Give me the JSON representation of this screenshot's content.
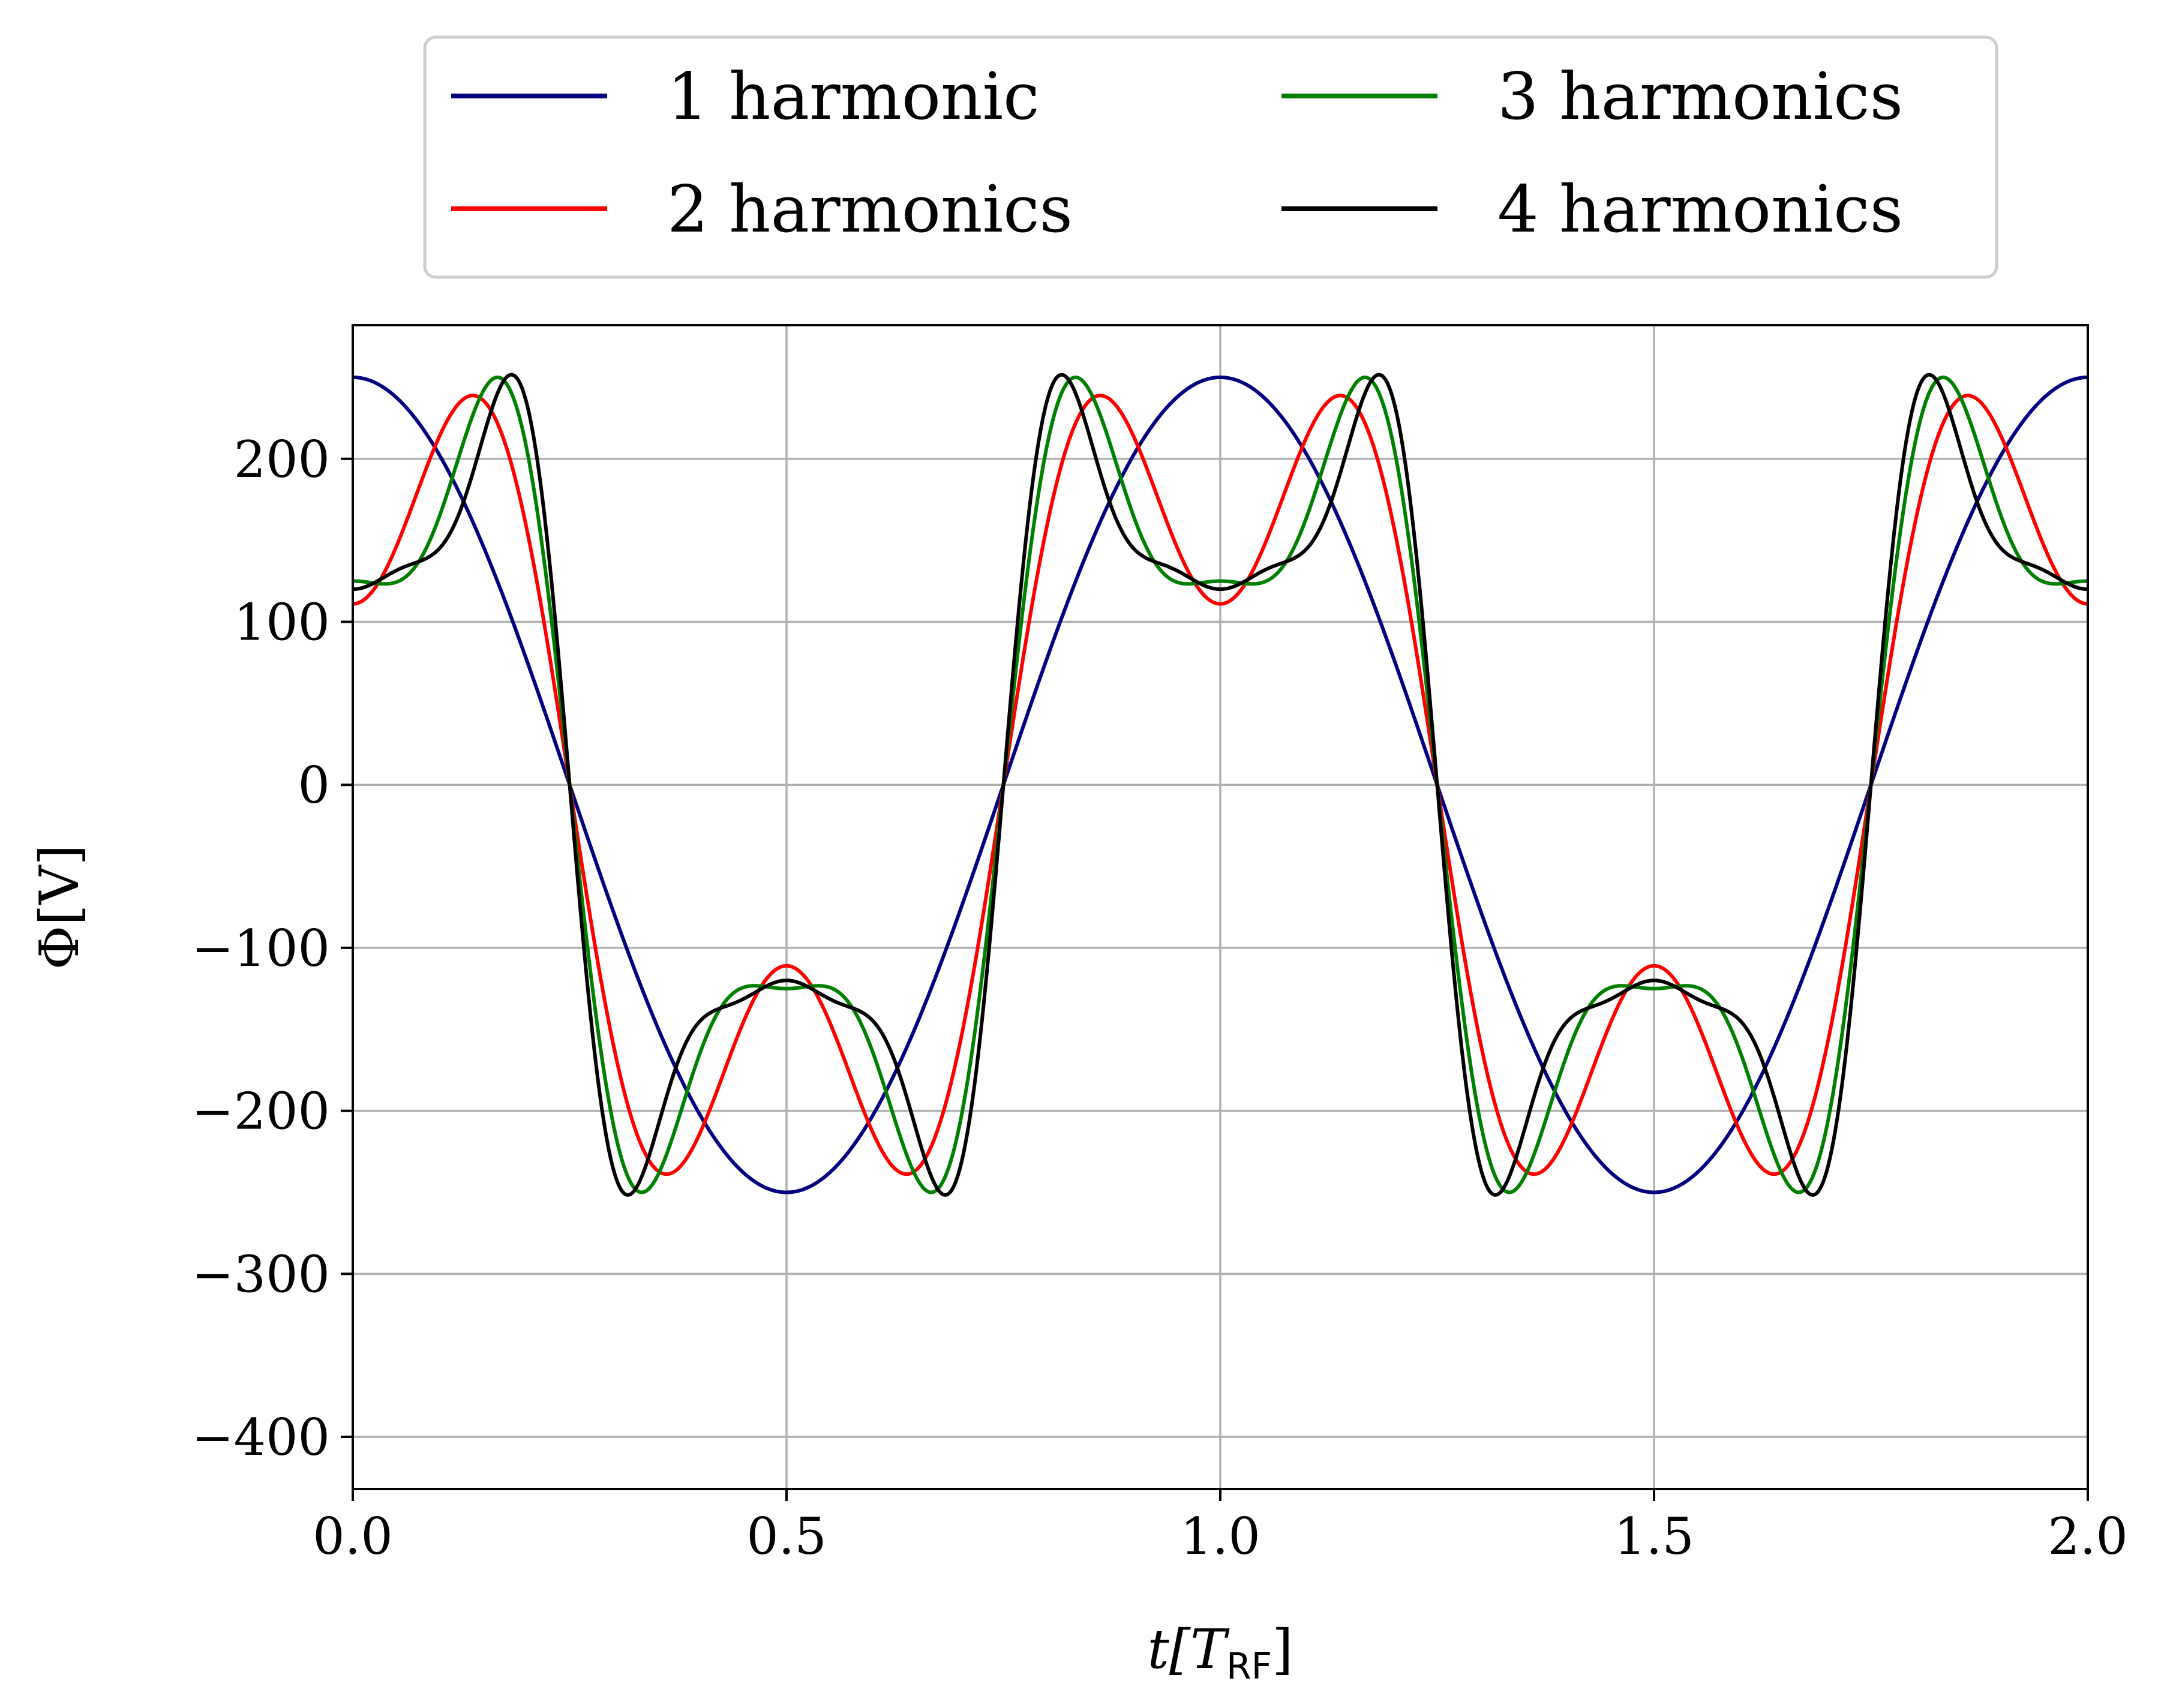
{
  "chart_data": {
    "type": "line",
    "title": "",
    "xlabel": "t[T_RF]",
    "xlabel_parts": {
      "main": "t[T",
      "sub": "RF",
      "close": "]"
    },
    "ylabel": "Φ[V]",
    "xlim": [
      0,
      2
    ],
    "ylim": [
      -432,
      282
    ],
    "xticks": [
      0,
      0.5,
      1,
      1.5,
      2
    ],
    "xtick_labels": [
      "0.0",
      "0.5",
      "1.0",
      "1.5",
      "2.0"
    ],
    "yticks": [
      -400,
      -300,
      -200,
      -100,
      0,
      100,
      200
    ],
    "ytick_labels": [
      "−400",
      "−300",
      "−200",
      "−100",
      "0",
      "100",
      "200"
    ],
    "grid": true,
    "legend_position": "top, above plot, 2 columns",
    "function": "sum over k of A_k * cos(2*pi*(2k-1)*t)",
    "series": [
      {
        "name": "1 harmonic",
        "color": "#000080",
        "harmonic_orders": [
          1
        ],
        "amplitudes": [
          250
        ]
      },
      {
        "name": "2 harmonics",
        "color": "#ff0000",
        "harmonic_orders": [
          1,
          3
        ],
        "amplitudes": [
          222,
          -111
        ]
      },
      {
        "name": "3 harmonics",
        "color": "#008000",
        "harmonic_orders": [
          1,
          3,
          5
        ],
        "amplitudes": [
          208,
          -125,
          42
        ]
      },
      {
        "name": "4 harmonics",
        "color": "#000000",
        "harmonic_orders": [
          1,
          3,
          5,
          7
        ],
        "amplitudes": [
          200,
          -120,
          60,
          -20
        ]
      }
    ]
  }
}
